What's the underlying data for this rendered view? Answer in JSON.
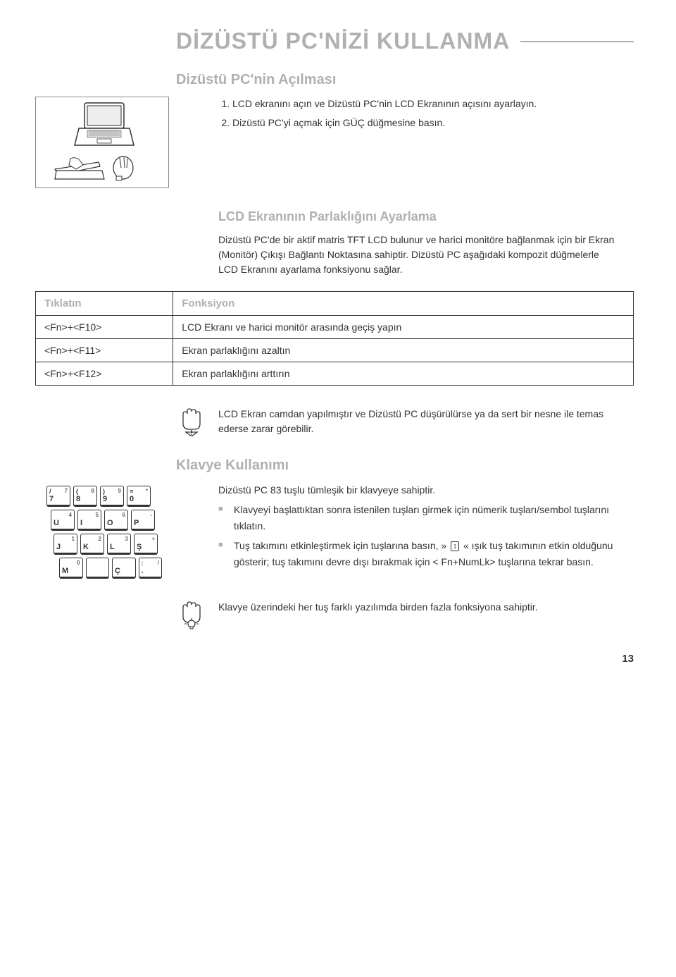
{
  "page": {
    "title": "DİZÜSTÜ PC'NİZİ KULLANMA",
    "number": "13"
  },
  "opening": {
    "heading": "Dizüstü PC'nin Açılması",
    "steps": [
      "LCD ekranını açın ve Dizüstü PC'nin LCD Ekranının açısını ayarlayın.",
      "Dizüstü PC'yi açmak için GÜÇ düğmesine basın."
    ]
  },
  "brightness": {
    "heading": "LCD Ekranının Parlaklığını Ayarlama",
    "body": "Dizüstü PC'de bir aktif matris TFT LCD bulunur ve harici monitöre bağlanmak için bir Ekran (Monitör) Çıkışı Bağlantı Noktasına sahiptir. Dizüstü PC aşağıdaki kompozit düğmelerle LCD Ekranını ayarlama fonksiyonu sağlar."
  },
  "fnTable": {
    "headKey": "Tıklatın",
    "headFn": "Fonksiyon",
    "rows": [
      {
        "key": "<Fn>+<F10>",
        "fn": "LCD Ekranı ve harici monitör arasında geçiş yapın"
      },
      {
        "key": "<Fn>+<F11>",
        "fn": "Ekran parlaklığını azaltın"
      },
      {
        "key": "<Fn>+<F12>",
        "fn": "Ekran parlaklığını arttırın"
      }
    ]
  },
  "lcdNote": {
    "text": "LCD Ekran camdan yapılmıştır ve Dizüstü PC düşürülürse ya da sert bir nesne ile temas ederse zarar görebilir."
  },
  "keyboard": {
    "heading": "Klavye Kullanımı",
    "intro": "Dizüstü PC 83 tuşlu tümleşik bir klavyeye sahiptir.",
    "bullets": [
      "Klavyeyi başlattıktan sonra istenilen tuşları girmek için nümerik tuşları/sembol tuşlarını tıklatın.",
      "Tuş takımını etkinleştirmek için <Fn+NumLk> tuşlarına basın, » « ışık tuş takımının etkin olduğunu gösterir; tuş takımını devre dışı bırakmak için < Fn+NumLk> tuşlarına tekrar basın."
    ],
    "keyRows": [
      [
        {
          "sym": "/",
          "main": "7",
          "alt": "7"
        },
        {
          "sym": "(",
          "main": "8",
          "alt": "8"
        },
        {
          "sym": ")",
          "main": "9",
          "alt": "9"
        },
        {
          "sym": "=",
          "main": "0",
          "alt": "*"
        }
      ],
      [
        {
          "main": "U",
          "alt": "4"
        },
        {
          "main": "I",
          "alt": "5"
        },
        {
          "main": "O",
          "alt": "6"
        },
        {
          "main": "P",
          "alt": "-"
        }
      ],
      [
        {
          "main": "J",
          "alt": "1"
        },
        {
          "main": "K",
          "alt": "2"
        },
        {
          "main": "L",
          "alt": "3"
        },
        {
          "main": "Ş",
          "alt": "+"
        }
      ],
      [
        {
          "main": "M",
          "alt": "0"
        },
        {
          "main": "",
          "alt": ""
        },
        {
          "main": "Ç",
          "alt": ""
        },
        {
          "sym": ":",
          "main": ".",
          "alt": "/"
        }
      ]
    ]
  },
  "keyboardNote": {
    "text": "Klavye üzerindeki her tuş farklı yazılımda birden fazla fonksiyona sahiptir."
  },
  "colors": {
    "gray": "#b0b0b0",
    "text": "#333333",
    "border": "#333333"
  }
}
